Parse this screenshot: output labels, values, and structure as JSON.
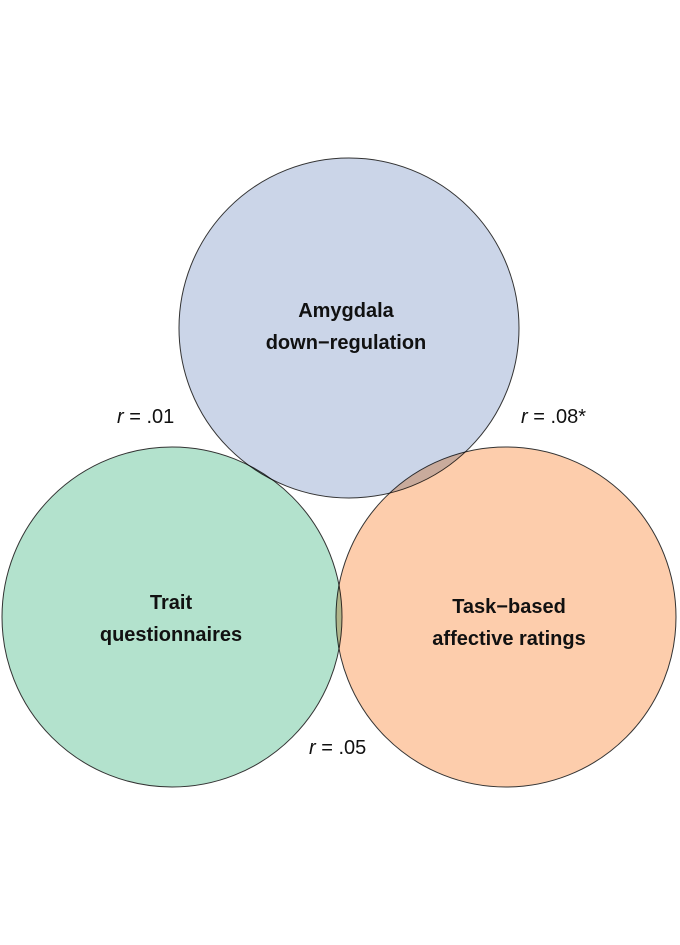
{
  "circles": {
    "amygdala": {
      "line1": "Amygdala",
      "line2": "down−regulation",
      "color": "#cbd5e8"
    },
    "trait": {
      "line1": "Trait",
      "line2": "questionnaires",
      "color": "#b3e2cd"
    },
    "task": {
      "line1": "Task−based",
      "line2": "affective ratings",
      "color": "#fdcdac"
    },
    "outline_color": "#333333"
  },
  "correlations": {
    "amygdala_trait": {
      "r": "r",
      "value": " = .01"
    },
    "amygdala_task": {
      "r": "r",
      "value": " = .08*"
    },
    "trait_task": {
      "r": "r",
      "value": " = .05"
    }
  }
}
